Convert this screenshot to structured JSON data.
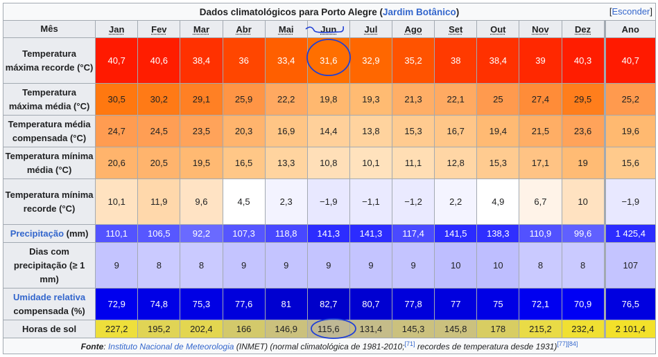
{
  "title": {
    "prefix": "Dados climatológicos para Porto Alegre (",
    "link": "Jardim Botânico",
    "suffix": ")"
  },
  "hide_link": {
    "open": "[",
    "label": "Esconder",
    "close": "]"
  },
  "header": {
    "first": "Mês",
    "months": [
      "Jan",
      "Fev",
      "Mar",
      "Abr",
      "Mai",
      "Jun",
      "Jul",
      "Ago",
      "Set",
      "Out",
      "Nov",
      "Dez"
    ],
    "year": "Ano"
  },
  "rows": [
    {
      "label": "Temperatura máxima recorde (°C)",
      "height": 66,
      "values": [
        "40,7",
        "40,6",
        "38,4",
        "36",
        "33,4",
        "31,6",
        "32,9",
        "35,2",
        "38",
        "38,4",
        "39",
        "40,3"
      ],
      "year": "40,7",
      "colors": [
        "#ff1a00",
        "#ff1d00",
        "#ff3100",
        "#ff4600",
        "#ff5f00",
        "#ff6f00",
        "#ff6700",
        "#ff5300",
        "#ff3a00",
        "#ff3100",
        "#ff2800",
        "#ff1d00"
      ],
      "year_color": "#ff1a00",
      "text": "#ffffff"
    },
    {
      "label": "Temperatura máxima média (°C)",
      "height": 46,
      "values": [
        "30,5",
        "30,2",
        "29,1",
        "25,9",
        "22,2",
        "19,8",
        "19,3",
        "21,3",
        "22,1",
        "25",
        "27,4",
        "29,5"
      ],
      "year": "25,2",
      "colors": [
        "#ff7810",
        "#ff7a16",
        "#ff8024",
        "#ff9545",
        "#ffa961",
        "#ffb86f",
        "#ffbb72",
        "#ffae66",
        "#ffaa62",
        "#ff9a4e",
        "#ff8c38",
        "#ff7e1c"
      ],
      "year_color": "#ff9a4e",
      "text": "#202122"
    },
    {
      "label": "Temperatura média compensada (°C)",
      "height": 46,
      "values": [
        "24,7",
        "24,5",
        "23,5",
        "20,3",
        "16,9",
        "14,4",
        "13,8",
        "15,3",
        "16,7",
        "19,4",
        "21,5",
        "23,6"
      ],
      "year": "19,6",
      "colors": [
        "#ff9c51",
        "#ff9e54",
        "#ffa35a",
        "#ffb46d",
        "#ffc585",
        "#ffd09a",
        "#ffd39e",
        "#ffcb90",
        "#ffc688",
        "#ffba73",
        "#ffae65",
        "#ffa35a"
      ],
      "year_color": "#ffb970",
      "text": "#202122"
    },
    {
      "label": "Temperatura mínima média (°C)",
      "height": 46,
      "values": [
        "20,6",
        "20,5",
        "19,5",
        "16,5",
        "13,3",
        "10,8",
        "10,1",
        "11,1",
        "12,8",
        "15,3",
        "17,1",
        "19"
      ],
      "year": "15,6",
      "colors": [
        "#ffb46c",
        "#ffb46d",
        "#ffb972",
        "#ffc787",
        "#ffd49f",
        "#ffdfb8",
        "#ffe2bd",
        "#ffdeb4",
        "#ffd6a5",
        "#ffcb90",
        "#ffc384",
        "#ffbb74"
      ],
      "year_color": "#ffca8c",
      "text": "#202122"
    },
    {
      "label": "Temperatura mínima recorde (°C)",
      "height": 66,
      "values": [
        "10,1",
        "11,9",
        "9,6",
        "4,5",
        "2,3",
        "−1,9",
        "−1,1",
        "−1,2",
        "2,2",
        "4,9",
        "6,7",
        "10"
      ],
      "year": "−1,9",
      "colors": [
        "#ffe2c0",
        "#ffd8ab",
        "#ffe3c4",
        "#ffffff",
        "#f3f3ff",
        "#e8e8ff",
        "#eaeaff",
        "#eaeaff",
        "#f4f4ff",
        "#ffffff",
        "#fff3e8",
        "#ffe2c1"
      ],
      "year_color": "#e8e8ff",
      "text": "#202122"
    },
    {
      "label_link": "Precipitação",
      "label_suffix": " (mm)",
      "height": 26,
      "values": [
        "110,1",
        "106,5",
        "92,2",
        "107,3",
        "118,8",
        "141,3",
        "141,3",
        "117,4",
        "141,5",
        "138,3",
        "110,9",
        "99,6"
      ],
      "year": "1 425,4",
      "colors": [
        "#5353ff",
        "#5757ff",
        "#6a6aff",
        "#5656ff",
        "#4848ff",
        "#2c2cff",
        "#2c2cff",
        "#4a4aff",
        "#2b2bff",
        "#2f2fff",
        "#5252ff",
        "#6060ff"
      ],
      "year_color": "#2c2cff",
      "text": "#ffffff"
    },
    {
      "label": "Dias com precipitação (≥ 1 mm)",
      "height": 66,
      "values": [
        "9",
        "8",
        "8",
        "9",
        "9",
        "9",
        "9",
        "9",
        "10",
        "10",
        "8",
        "8"
      ],
      "year": "107",
      "colors": [
        "#c4c4ff",
        "#cacaff",
        "#cacaff",
        "#c4c4ff",
        "#c4c4ff",
        "#c4c4ff",
        "#c4c4ff",
        "#c4c4ff",
        "#bebeff",
        "#bebeff",
        "#cacaff",
        "#cacaff"
      ],
      "year_color": "#c4c4ff",
      "text": "#202122"
    },
    {
      "label_link": "Umidade relativa",
      "label_suffix": " compensada (%)",
      "height": 46,
      "values": [
        "72,9",
        "74,8",
        "75,3",
        "77,6",
        "81",
        "82,7",
        "80,7",
        "77,8",
        "77",
        "75",
        "72,1",
        "70,9"
      ],
      "year": "76,5",
      "colors": [
        "#0000ee",
        "#0000e6",
        "#0000e4",
        "#0000dc",
        "#0000d0",
        "#0000ca",
        "#0000d1",
        "#0000db",
        "#0000de",
        "#0000e5",
        "#0000f0",
        "#0000f4"
      ],
      "year_color": "#0000e0",
      "text": "#ffffff"
    },
    {
      "label": "Horas de sol",
      "height": 26,
      "values": [
        "227,2",
        "195,2",
        "202,4",
        "166",
        "146,9",
        "115,6",
        "131,4",
        "145,3",
        "145,8",
        "178",
        "215,2",
        "232,4"
      ],
      "year": "2 101,4",
      "colors": [
        "#eedf3b",
        "#e0d455",
        "#e3d650",
        "#d3c96b",
        "#cbc17d",
        "#bfb895",
        "#c5bc89",
        "#cbc17e",
        "#cbc17e",
        "#d8cd62",
        "#e9db46",
        "#f0e032"
      ],
      "year_color": "#f3e12a",
      "text": "#202122"
    }
  ],
  "footer": {
    "fonte": "Fonte",
    "colon": ": ",
    "source_link": "Instituto Nacional de Meteorologia",
    "text1": " (INMET) (normal climatológica de 1981-2010;",
    "ref1": "[71]",
    "text2": " recordes de temperatura desde 1931)",
    "ref2": "[77]",
    "ref3": "[84]"
  }
}
